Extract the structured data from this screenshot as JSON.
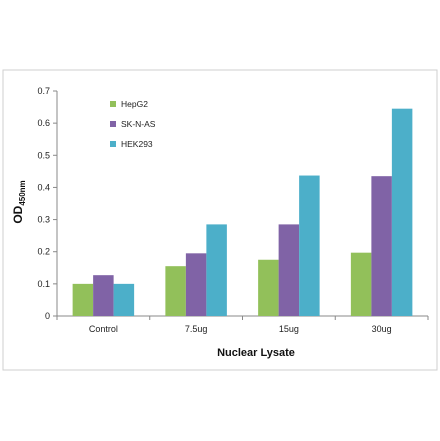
{
  "chart_data": {
    "type": "bar",
    "categories": [
      "Control",
      "7.5ug",
      "15ug",
      "30ug"
    ],
    "series": [
      {
        "name": "HepG2",
        "color": "#92C05A",
        "values": [
          0.1,
          0.155,
          0.175,
          0.197
        ]
      },
      {
        "name": "SK-N-AS",
        "color": "#8063A6",
        "values": [
          0.127,
          0.195,
          0.285,
          0.435
        ]
      },
      {
        "name": "HEK293",
        "color": "#4CAFC9",
        "values": [
          0.1,
          0.285,
          0.437,
          0.645
        ]
      }
    ],
    "xlabel": "Nuclear Lysate",
    "ylabel_main": "OD",
    "ylabel_sub": "450nm",
    "ylim": [
      0,
      0.7
    ],
    "yticks": [
      "0",
      "0.1",
      "0.2",
      "0.3",
      "0.4",
      "0.5",
      "0.6",
      "0.7"
    ],
    "ytick_values": [
      0,
      0.1,
      0.2,
      0.3,
      0.4,
      0.5,
      0.6,
      0.7
    ],
    "grid": false,
    "legend_position": "top-left"
  }
}
